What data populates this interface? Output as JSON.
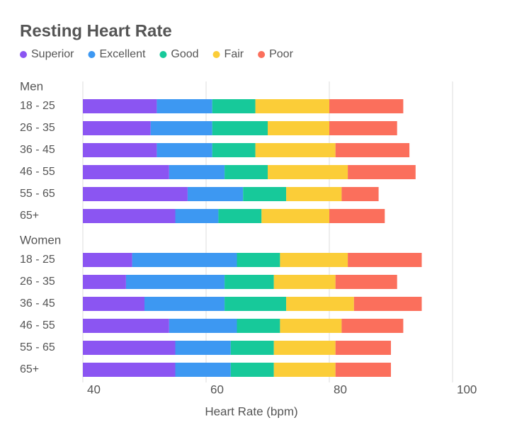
{
  "chart_data": {
    "type": "stacked-bar-horizontal",
    "title": "Resting Heart Rate",
    "x_label": "Heart Rate (bpm)",
    "groups": [
      {
        "name": "Men",
        "categories": [
          "18 - 25",
          "26 - 35",
          "36 - 45",
          "46 - 55",
          "55 - 65",
          "65+"
        ]
      },
      {
        "name": "Women",
        "categories": [
          "18 - 25",
          "26 - 35",
          "36 - 45",
          "46 - 55",
          "55 - 65",
          "65+"
        ]
      }
    ],
    "series": [
      {
        "name": "Superior",
        "color": "#8b55f2",
        "values": [
          [
            12,
            11,
            12,
            14,
            17,
            15
          ],
          [
            8,
            7,
            10,
            14,
            15,
            15
          ]
        ]
      },
      {
        "name": "Excellent",
        "color": "#3d98f2",
        "values": [
          [
            9,
            10,
            9,
            9,
            9,
            7
          ],
          [
            17,
            16,
            13,
            11,
            9,
            9
          ]
        ]
      },
      {
        "name": "Good",
        "color": "#17c99a",
        "values": [
          [
            7,
            9,
            7,
            7,
            7,
            7
          ],
          [
            7,
            8,
            10,
            7,
            7,
            7
          ]
        ]
      },
      {
        "name": "Fair",
        "color": "#fbcd38",
        "values": [
          [
            12,
            10,
            13,
            13,
            9,
            11
          ],
          [
            11,
            10,
            11,
            10,
            10,
            10
          ]
        ]
      },
      {
        "name": "Poor",
        "color": "#fb6f5c",
        "values": [
          [
            12,
            11,
            12,
            11,
            6,
            9
          ],
          [
            12,
            10,
            11,
            10,
            9,
            9
          ]
        ]
      }
    ],
    "xlim": [
      40,
      100
    ],
    "xticks": [
      40,
      60,
      80,
      100
    ],
    "grid": true
  }
}
